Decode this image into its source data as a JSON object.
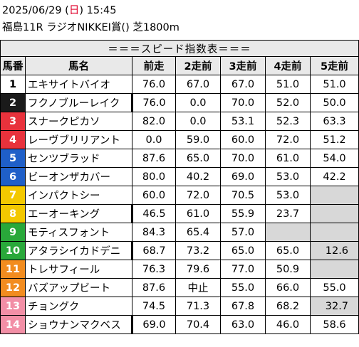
{
  "header": {
    "date": "2025/06/29",
    "dow_open": " (",
    "dow": "日",
    "dow_close": ") ",
    "time": "15:45",
    "race": "福島11R ラジオNIKKEI賞() 芝1800m"
  },
  "table": {
    "title": "＝＝＝スピード指数表＝＝＝",
    "columns": [
      "馬番",
      "馬名",
      "前走",
      "2走前",
      "3走前",
      "4走前",
      "5走前"
    ],
    "colors": {
      "frame1": "#ffffff",
      "frame2": "#1a1a1a",
      "frame3": "#e8323c",
      "frame4": "#1f5fc8",
      "frame5": "#f3c800",
      "frame6": "#29a83a",
      "frame7": "#f28c1f",
      "frame8": "#f28fa6",
      "empty": "#d8d8d8"
    },
    "rows": [
      {
        "no": "1",
        "name": "エキサイトバイオ",
        "v": [
          "76.0",
          "67.0",
          "67.0",
          "51.0",
          "51.0"
        ],
        "frame": 1
      },
      {
        "no": "2",
        "name": "フクノブルーレイク",
        "v": [
          "76.0",
          "0.0",
          "70.0",
          "52.0",
          "50.0"
        ],
        "frame": 2
      },
      {
        "no": "3",
        "name": "スナークピカソ",
        "v": [
          "82.0",
          "0.0",
          "53.1",
          "52.3",
          "63.3"
        ],
        "frame": 3
      },
      {
        "no": "4",
        "name": "レーヴブリリアント",
        "v": [
          "0.0",
          "59.0",
          "60.0",
          "72.0",
          "51.2"
        ],
        "frame": 3
      },
      {
        "no": "5",
        "name": "センツブラッド",
        "v": [
          "87.6",
          "65.0",
          "70.0",
          "61.0",
          "54.0"
        ],
        "frame": 4
      },
      {
        "no": "6",
        "name": "ビーオンザカバー",
        "v": [
          "80.0",
          "40.2",
          "69.0",
          "53.0",
          "42.2"
        ],
        "frame": 4
      },
      {
        "no": "7",
        "name": "インパクトシー",
        "v": [
          "60.0",
          "72.0",
          "70.5",
          "53.0",
          ""
        ],
        "frame": 5
      },
      {
        "no": "8",
        "name": "エーオーキング",
        "v": [
          "46.5",
          "61.0",
          "55.9",
          "23.7",
          ""
        ],
        "frame": 5
      },
      {
        "no": "9",
        "name": "モティスフォント",
        "v": [
          "84.3",
          "65.4",
          "57.0",
          "",
          ""
        ],
        "frame": 6
      },
      {
        "no": "10",
        "name": "アタラシイカドデニ",
        "v": [
          "68.7",
          "73.2",
          "65.0",
          "65.0",
          "12.6"
        ],
        "frame": 6
      },
      {
        "no": "11",
        "name": "トレサフィール",
        "v": [
          "76.3",
          "79.6",
          "77.0",
          "50.9",
          ""
        ],
        "frame": 7
      },
      {
        "no": "12",
        "name": "バズアップビート",
        "v": [
          "87.6",
          "中止",
          "55.0",
          "66.0",
          "55.0"
        ],
        "frame": 7
      },
      {
        "no": "13",
        "name": "チョングク",
        "v": [
          "74.5",
          "71.3",
          "67.8",
          "68.2",
          "32.7"
        ],
        "frame": 8
      },
      {
        "no": "14",
        "name": "ショウナンマクベス",
        "v": [
          "69.0",
          "70.4",
          "63.0",
          "46.0",
          "58.6"
        ],
        "frame": 8
      }
    ]
  }
}
